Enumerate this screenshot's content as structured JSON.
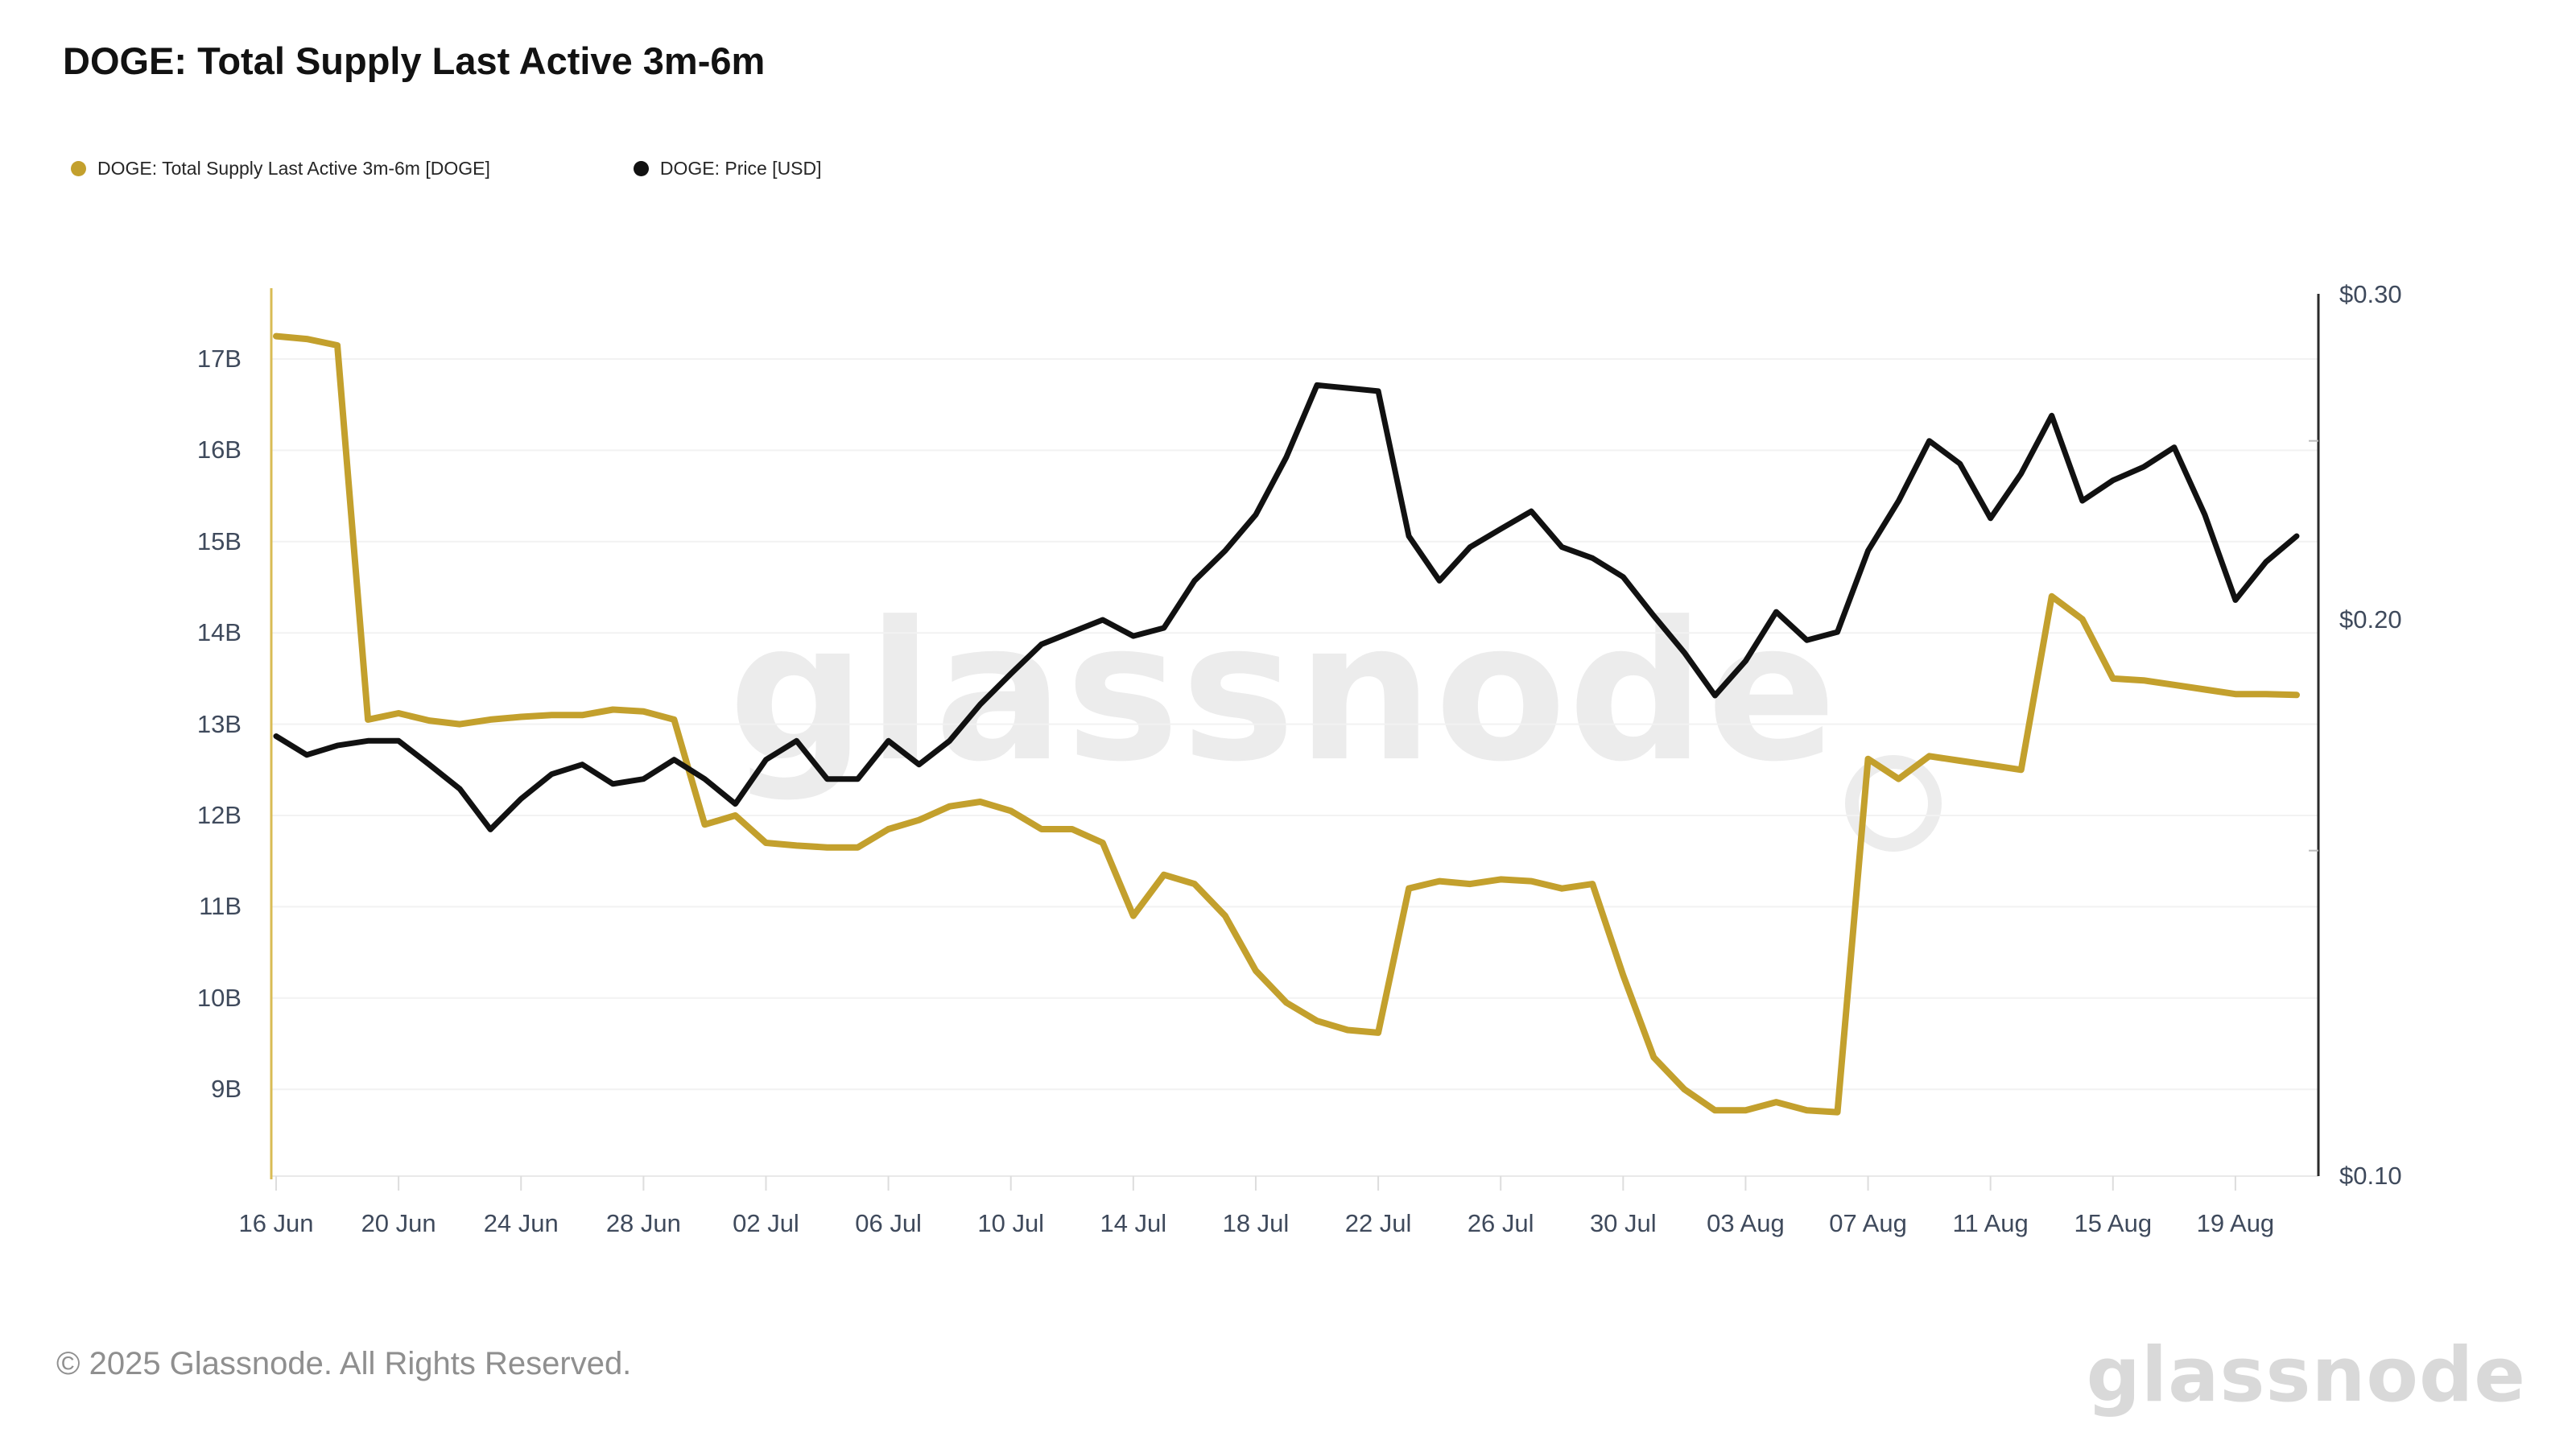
{
  "title": "DOGE: Total Supply Last Active 3m-6m",
  "watermark": "glassnode",
  "footer": {
    "copyright": "© 2025 Glassnode. All Rights Reserved.",
    "logo_text": "glassnode"
  },
  "legend": [
    {
      "label": "DOGE: Total Supply Last Active 3m-6m [DOGE]",
      "color": "#c3a02d"
    },
    {
      "label": "DOGE: Price [USD]",
      "color": "#111111"
    }
  ],
  "chart_data": {
    "type": "line",
    "grid": "horizontal",
    "x": [
      "16 Jun",
      "17 Jun",
      "18 Jun",
      "19 Jun",
      "20 Jun",
      "21 Jun",
      "22 Jun",
      "23 Jun",
      "24 Jun",
      "25 Jun",
      "26 Jun",
      "27 Jun",
      "28 Jun",
      "29 Jun",
      "30 Jun",
      "01 Jul",
      "02 Jul",
      "03 Jul",
      "04 Jul",
      "05 Jul",
      "06 Jul",
      "07 Jul",
      "08 Jul",
      "09 Jul",
      "10 Jul",
      "11 Jul",
      "12 Jul",
      "13 Jul",
      "14 Jul",
      "15 Jul",
      "16 Jul",
      "17 Jul",
      "18 Jul",
      "19 Jul",
      "20 Jul",
      "21 Jul",
      "22 Jul",
      "23 Jul",
      "24 Jul",
      "25 Jul",
      "26 Jul",
      "27 Jul",
      "28 Jul",
      "29 Jul",
      "30 Jul",
      "31 Jul",
      "01 Aug",
      "02 Aug",
      "03 Aug",
      "04 Aug",
      "05 Aug",
      "06 Aug",
      "07 Aug",
      "08 Aug",
      "09 Aug",
      "10 Aug",
      "11 Aug",
      "12 Aug",
      "13 Aug",
      "14 Aug",
      "15 Aug",
      "16 Aug",
      "17 Aug",
      "18 Aug",
      "19 Aug",
      "20 Aug",
      "21 Aug"
    ],
    "x_tick_labels": [
      "16 Jun",
      "20 Jun",
      "24 Jun",
      "28 Jun",
      "02 Jul",
      "06 Jul",
      "10 Jul",
      "14 Jul",
      "18 Jul",
      "22 Jul",
      "26 Jul",
      "30 Jul",
      "03 Aug",
      "07 Aug",
      "11 Aug",
      "15 Aug",
      "19 Aug"
    ],
    "left_axis": {
      "scale": "linear",
      "unit": "B",
      "tick_labels": [
        "17B",
        "16B",
        "15B",
        "14B",
        "13B",
        "12B",
        "11B",
        "10B",
        "9B"
      ],
      "tick_values": [
        17,
        16,
        15,
        14,
        13,
        12,
        11,
        10,
        9
      ]
    },
    "right_axis": {
      "scale": "log",
      "unit": "USD",
      "tick_labels": [
        "$0.30",
        "$0.20",
        "$0.10"
      ],
      "tick_values": [
        0.3,
        0.2,
        0.1
      ],
      "minor_tick_values": [
        0.25,
        0.15
      ]
    },
    "series": [
      {
        "name": "DOGE: Total Supply Last Active 3m-6m [DOGE]",
        "axis": "left",
        "color": "#c3a02d",
        "values": [
          17.25,
          17.22,
          17.15,
          13.05,
          13.12,
          13.04,
          13.0,
          13.05,
          13.08,
          13.1,
          13.1,
          13.16,
          13.14,
          13.05,
          11.9,
          12.0,
          11.7,
          11.67,
          11.65,
          11.65,
          11.85,
          11.95,
          12.1,
          12.15,
          12.05,
          11.85,
          11.85,
          11.7,
          10.9,
          11.35,
          11.25,
          10.9,
          10.3,
          9.95,
          9.75,
          9.65,
          9.62,
          11.2,
          11.28,
          11.25,
          11.3,
          11.28,
          11.2,
          11.25,
          10.25,
          9.35,
          9.0,
          8.77,
          8.77,
          8.86,
          8.77,
          8.75,
          12.62,
          12.4,
          12.65,
          12.6,
          12.55,
          12.5,
          14.4,
          14.15,
          13.5,
          13.48,
          13.43,
          13.38,
          13.33,
          13.33,
          13.32
        ]
      },
      {
        "name": "DOGE: Price [USD]",
        "axis": "right",
        "color": "#111111",
        "values": [
          0.173,
          0.169,
          0.171,
          0.172,
          0.172,
          0.167,
          0.162,
          0.154,
          0.16,
          0.165,
          0.167,
          0.163,
          0.164,
          0.168,
          0.164,
          0.159,
          0.168,
          0.172,
          0.164,
          0.164,
          0.172,
          0.167,
          0.172,
          0.18,
          0.187,
          0.194,
          0.197,
          0.2,
          0.196,
          0.198,
          0.21,
          0.218,
          0.228,
          0.245,
          0.268,
          0.267,
          0.266,
          0.222,
          0.21,
          0.219,
          0.224,
          0.229,
          0.219,
          0.216,
          0.211,
          0.201,
          0.192,
          0.182,
          0.19,
          0.202,
          0.195,
          0.197,
          0.218,
          0.232,
          0.25,
          0.243,
          0.227,
          0.24,
          0.258,
          0.232,
          0.238,
          0.242,
          0.248,
          0.228,
          0.205,
          0.215,
          0.222
        ]
      }
    ]
  }
}
